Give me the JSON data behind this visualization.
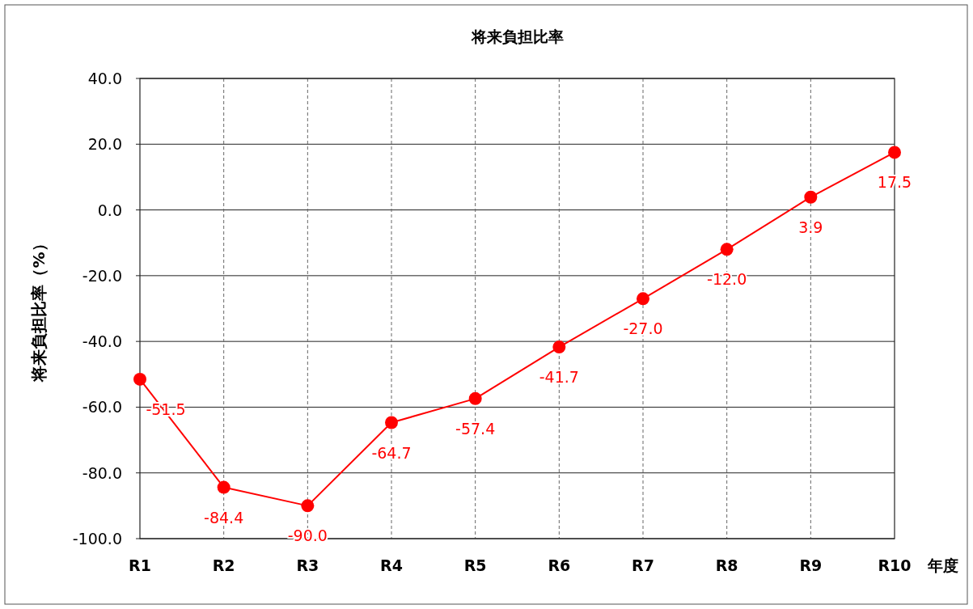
{
  "chart_data": {
    "type": "line",
    "title": "将来負担比率",
    "xlabel": "年度",
    "ylabel": "将来負担比率（%）",
    "categories": [
      "R1",
      "R2",
      "R3",
      "R4",
      "R5",
      "R6",
      "R7",
      "R8",
      "R9",
      "R10"
    ],
    "series": [
      {
        "color": "#ff0000",
        "values": [
          -51.5,
          -84.4,
          -90.0,
          -64.7,
          -57.4,
          -41.7,
          -27.0,
          -12.0,
          3.9,
          17.5
        ],
        "value_labels": [
          "-51.5",
          "-84.4",
          "-90.0",
          "-64.7",
          "-57.4",
          "-41.7",
          "-27.0",
          "-12.0",
          "3.9",
          "17.5"
        ]
      }
    ],
    "ylim": [
      -100,
      40
    ],
    "yticks": [
      {
        "value": -100,
        "label": "-100.0"
      },
      {
        "value": -80,
        "label": "-80.0"
      },
      {
        "value": -60,
        "label": "-60.0"
      },
      {
        "value": -40,
        "label": "-40.0"
      },
      {
        "value": -20,
        "label": "-20.0"
      },
      {
        "value": 0,
        "label": "0.0"
      },
      {
        "value": 20,
        "label": "20.0"
      },
      {
        "value": 40,
        "label": "40.0"
      }
    ],
    "grid": true,
    "marker": "circle",
    "line_style": "solid"
  }
}
